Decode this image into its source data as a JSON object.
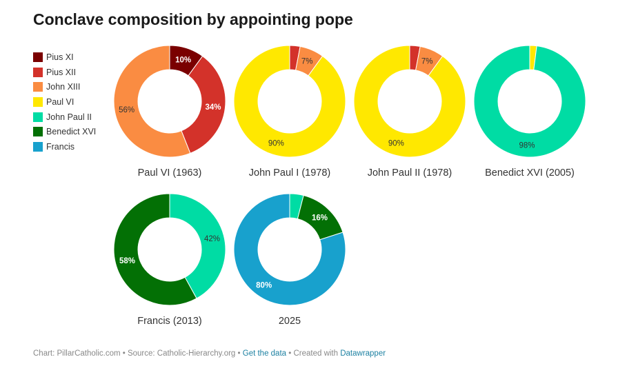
{
  "title": "Conclave composition by appointing pope",
  "colors": {
    "Pius XI": "#7a0000",
    "Pius XII": "#d3322a",
    "John XIII": "#fa8c42",
    "Paul VI": "#ffe800",
    "John Paul II": "#00dca4",
    "Benedict XVI": "#037005",
    "Francis": "#18a1cd"
  },
  "legend": [
    "Pius XI",
    "Pius XII",
    "John XIII",
    "Paul VI",
    "John Paul II",
    "Benedict XVI",
    "Francis"
  ],
  "chart_data": {
    "type": "pie",
    "variant": "donut",
    "unit": "%",
    "charts": [
      {
        "caption": "Paul VI (1963)",
        "slices": [
          {
            "name": "Pius XI",
            "value": 10,
            "label": "10%"
          },
          {
            "name": "Pius XII",
            "value": 34,
            "label": "34%"
          },
          {
            "name": "John XIII",
            "value": 56,
            "label": "56%"
          }
        ]
      },
      {
        "caption": "John Paul I (1978)",
        "slices": [
          {
            "name": "Pius XII",
            "value": 3,
            "label": ""
          },
          {
            "name": "John XIII",
            "value": 7,
            "label": "7%"
          },
          {
            "name": "Paul VI",
            "value": 90,
            "label": "90%"
          }
        ]
      },
      {
        "caption": "John Paul II (1978)",
        "slices": [
          {
            "name": "Pius XII",
            "value": 3,
            "label": ""
          },
          {
            "name": "John XIII",
            "value": 7,
            "label": "7%"
          },
          {
            "name": "Paul VI",
            "value": 90,
            "label": "90%"
          }
        ]
      },
      {
        "caption": "Benedict XVI (2005)",
        "slices": [
          {
            "name": "Paul VI",
            "value": 2,
            "label": ""
          },
          {
            "name": "John Paul II",
            "value": 98,
            "label": "98%"
          }
        ]
      },
      {
        "caption": "Francis (2013)",
        "slices": [
          {
            "name": "John Paul II",
            "value": 42,
            "label": "42%"
          },
          {
            "name": "Benedict XVI",
            "value": 58,
            "label": "58%"
          }
        ]
      },
      {
        "caption": "2025",
        "slices": [
          {
            "name": "John Paul II",
            "value": 4,
            "label": ""
          },
          {
            "name": "Benedict XVI",
            "value": 16,
            "label": "16%"
          },
          {
            "name": "Francis",
            "value": 80,
            "label": "80%"
          }
        ]
      }
    ]
  },
  "footer": {
    "credit": "Chart: PillarCatholic.com • Source: Catholic-Hierarchy.org • ",
    "get_data": "Get the data",
    "created": " • Created with ",
    "datawrapper": "Datawrapper"
  }
}
